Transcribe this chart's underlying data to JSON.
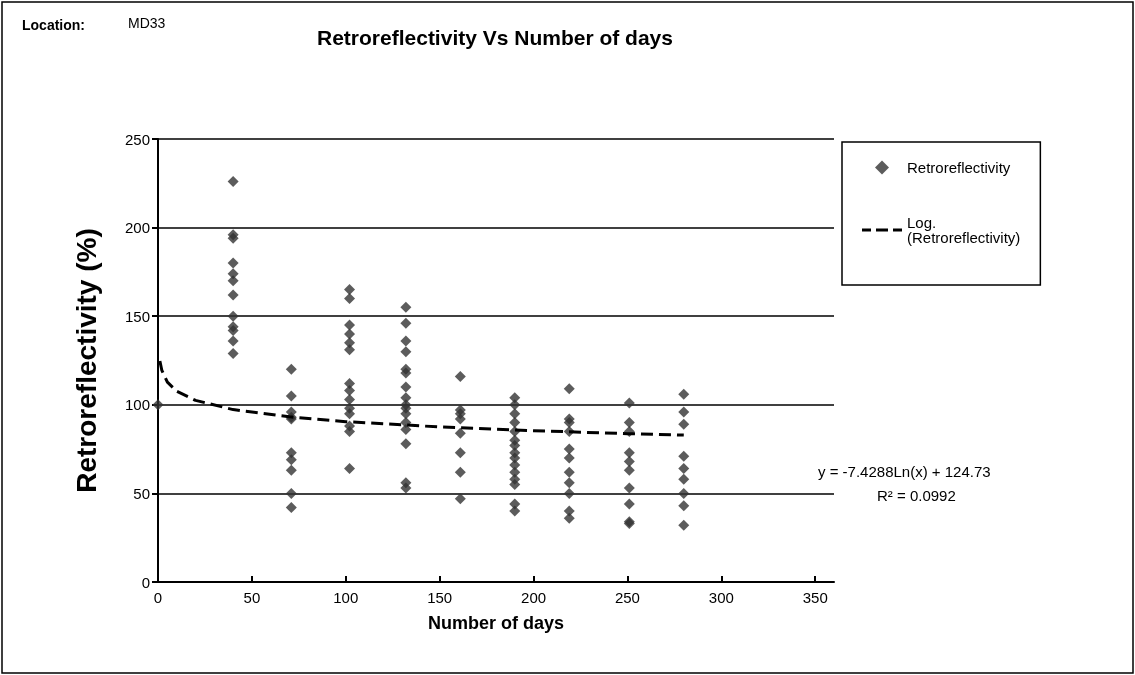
{
  "chart_data": {
    "type": "scatter",
    "title": "Retroreflectivity Vs Number of days",
    "xlabel": "Number of days",
    "ylabel": "Retroreflectivity (%)",
    "annotations": [
      "Location:",
      "MD33",
      "y = -7.4288Ln(x) + 124.73",
      "R² = 0.0992"
    ],
    "xlim": [
      0,
      360
    ],
    "xticks": [
      0,
      50,
      100,
      150,
      200,
      250,
      300,
      350
    ],
    "ylim": [
      0,
      250
    ],
    "yticks": [
      0,
      50,
      100,
      150,
      200,
      250
    ],
    "grid": "y",
    "legend": "right",
    "marker": "diamond",
    "series": [
      {
        "name": "Retroreflectivity",
        "color": "#333333",
        "x": [
          0,
          40,
          40,
          40,
          40,
          40,
          40,
          40,
          40,
          40,
          40,
          40,
          40,
          71,
          71,
          71,
          71,
          71,
          71,
          71,
          71,
          71,
          71,
          102,
          102,
          102,
          102,
          102,
          102,
          102,
          102,
          102,
          102,
          102,
          102,
          102,
          102,
          132,
          132,
          132,
          132,
          132,
          132,
          132,
          132,
          132,
          132,
          132,
          132,
          132,
          132,
          132,
          132,
          161,
          161,
          161,
          161,
          161,
          161,
          161,
          161,
          190,
          190,
          190,
          190,
          190,
          190,
          190,
          190,
          190,
          190,
          190,
          190,
          190,
          190,
          190,
          219,
          219,
          219,
          219,
          219,
          219,
          219,
          219,
          219,
          219,
          219,
          251,
          251,
          251,
          251,
          251,
          251,
          251,
          251,
          251,
          251,
          280,
          280,
          280,
          280,
          280,
          280,
          280,
          280,
          280
        ],
        "values": [
          100,
          226,
          196,
          194,
          180,
          174,
          170,
          162,
          150,
          144,
          142,
          136,
          129,
          120,
          105,
          96,
          93,
          92,
          73,
          69,
          63,
          50,
          42,
          165,
          160,
          145,
          140,
          135,
          131,
          112,
          108,
          103,
          98,
          95,
          88,
          85,
          64,
          155,
          146,
          136,
          130,
          120,
          118,
          110,
          104,
          100,
          98,
          95,
          90,
          86,
          78,
          56,
          53,
          116,
          97,
          95,
          92,
          84,
          73,
          62,
          47,
          104,
          100,
          95,
          90,
          85,
          80,
          77,
          73,
          70,
          66,
          62,
          58,
          55,
          44,
          40,
          109,
          92,
          90,
          85,
          75,
          70,
          62,
          56,
          50,
          40,
          36,
          101,
          90,
          85,
          73,
          68,
          63,
          53,
          44,
          34,
          33,
          106,
          96,
          89,
          71,
          64,
          58,
          50,
          43,
          32
        ]
      },
      {
        "name": "Log. (Retroreflectivity)",
        "type": "line",
        "color": "#000000",
        "line_style": "dashed",
        "marker": "none",
        "x": [
          1,
          2,
          5,
          10,
          20,
          40,
          70,
          100,
          150,
          200,
          250,
          280
        ],
        "values": [
          124.7,
          119.6,
          112.8,
          107.6,
          102.5,
          97.3,
          93.2,
          90.5,
          87.5,
          85.4,
          83.7,
          82.9
        ]
      }
    ]
  }
}
